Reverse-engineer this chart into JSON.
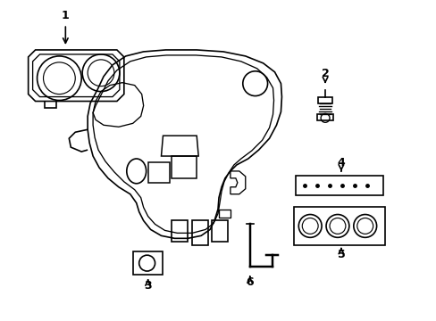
{
  "background_color": "#ffffff",
  "line_color": "#000000",
  "line_width": 1.2,
  "label_fontsize": 9,
  "figsize": [
    4.89,
    3.6
  ],
  "dpi": 100
}
